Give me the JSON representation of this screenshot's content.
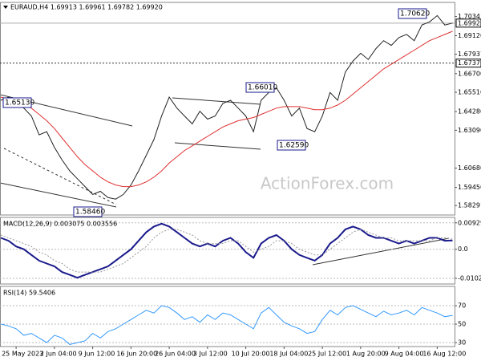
{
  "chart_data": [
    {
      "type": "line",
      "title": "EURAUD,H4 1.69913 1.69961 1.69782 1.69920",
      "watermark": "ActionForex.com",
      "series": [
        {
          "color": "#222222",
          "values": [
            1.65,
            1.652,
            1.648,
            1.645,
            1.64,
            1.628,
            1.63,
            1.62,
            1.612,
            1.605,
            1.6,
            1.595,
            1.59,
            1.592,
            1.588,
            1.587,
            1.59,
            1.596,
            1.605,
            1.615,
            1.625,
            1.64,
            1.652,
            1.645,
            1.64,
            1.635,
            1.643,
            1.638,
            1.64,
            1.648,
            1.65,
            1.645,
            1.64,
            1.63,
            1.65,
            1.655,
            1.658,
            1.65,
            1.64,
            1.645,
            1.632,
            1.63,
            1.64,
            1.655,
            1.65,
            1.668,
            1.675,
            1.68,
            1.676,
            1.683,
            1.688,
            1.685,
            1.69,
            1.692,
            1.688,
            1.698,
            1.7,
            1.704,
            1.698,
            1.6992
          ]
        },
        {
          "color": "#e03030",
          "values": [
            1.652,
            1.651,
            1.65,
            1.648,
            1.645,
            1.641,
            1.637,
            1.632,
            1.626,
            1.62,
            1.614,
            1.609,
            1.605,
            1.601,
            1.598,
            1.596,
            1.595,
            1.595,
            1.596,
            1.598,
            1.601,
            1.605,
            1.61,
            1.614,
            1.618,
            1.621,
            1.624,
            1.627,
            1.63,
            1.633,
            1.635,
            1.637,
            1.638,
            1.639,
            1.641,
            1.643,
            1.645,
            1.646,
            1.646,
            1.646,
            1.645,
            1.644,
            1.644,
            1.645,
            1.647,
            1.65,
            1.654,
            1.658,
            1.662,
            1.666,
            1.67,
            1.673,
            1.676,
            1.679,
            1.682,
            1.685,
            1.688,
            1.69,
            1.692,
            1.694
          ]
        }
      ],
      "ylim": [
        1.5769,
        1.7124
      ],
      "yticks": [
        1.70341,
        {
          "value": 1.6912,
          "label": "1.69120"
        },
        1.67937,
        {
          "value": 1.667,
          "label": "1.66700"
        },
        {
          "value": 1.6551,
          "label": "1.65510"
        },
        {
          "value": 1.6428,
          "label": "1.64280"
        },
        {
          "value": 1.6309,
          "label": "1.63090"
        },
        {
          "value": 1.6068,
          "label": "1.60680"
        },
        {
          "value": 1.5945,
          "label": "1.59450"
        },
        1.58291
      ],
      "current_price": {
        "value": 1.6992,
        "label": "1.69920"
      },
      "level": {
        "value": 1.6737,
        "label": "1.67370"
      },
      "annotations": [
        "1.70620",
        "1.66010",
        "1.65130",
        "1.62590",
        "1.58460"
      ]
    },
    {
      "type": "line",
      "title": "MACD(12,26,9) 0.003075 0.003556",
      "series": [
        {
          "color": "#1a1a8c",
          "values": [
            0.004,
            0.003,
            0.001,
            0.0,
            -0.002,
            -0.004,
            -0.005,
            -0.006,
            -0.008,
            -0.009,
            -0.01,
            -0.009,
            -0.008,
            -0.007,
            -0.006,
            -0.004,
            -0.002,
            0.0,
            0.003,
            0.006,
            0.008,
            0.009,
            0.008,
            0.006,
            0.004,
            0.002,
            0.001,
            0.002,
            0.001,
            0.003,
            0.004,
            0.002,
            -0.001,
            -0.003,
            0.002,
            0.004,
            0.005,
            0.003,
            0.0,
            -0.002,
            -0.003,
            -0.004,
            -0.002,
            0.002,
            0.004,
            0.007,
            0.008,
            0.007,
            0.005,
            0.004,
            0.004,
            0.003,
            0.002,
            0.003,
            0.002,
            0.003,
            0.004,
            0.004,
            0.003,
            0.003075
          ]
        },
        {
          "color": "#999999",
          "dashed": true,
          "values": [
            0.005,
            0.004,
            0.003,
            0.002,
            0.001,
            -0.001,
            -0.002,
            -0.004,
            -0.005,
            -0.007,
            -0.008,
            -0.008,
            -0.008,
            -0.008,
            -0.007,
            -0.006,
            -0.005,
            -0.003,
            -0.001,
            0.001,
            0.004,
            0.006,
            0.007,
            0.007,
            0.006,
            0.005,
            0.003,
            0.002,
            0.002,
            0.002,
            0.003,
            0.003,
            0.001,
            -0.001,
            0.0,
            0.001,
            0.003,
            0.003,
            0.002,
            0.0,
            -0.001,
            -0.002,
            -0.002,
            0.0,
            0.002,
            0.004,
            0.006,
            0.007,
            0.006,
            0.005,
            0.004,
            0.004,
            0.003,
            0.003,
            0.003,
            0.003,
            0.003,
            0.004,
            0.004,
            0.003556
          ]
        }
      ],
      "ylim": [
        -0.0122,
        0.0112
      ],
      "yticks": [
        0.009291,
        {
          "value": 0,
          "label": "0.0"
        },
        -0.010211
      ]
    },
    {
      "type": "line",
      "title": "RSI(14) 59.5406",
      "series": [
        {
          "color": "#3399ff",
          "values": [
            50,
            48,
            45,
            38,
            40,
            35,
            30,
            38,
            35,
            28,
            30,
            32,
            40,
            35,
            42,
            45,
            50,
            55,
            60,
            65,
            62,
            70,
            68,
            62,
            55,
            58,
            52,
            60,
            55,
            62,
            60,
            55,
            50,
            45,
            62,
            68,
            60,
            52,
            48,
            45,
            40,
            42,
            55,
            65,
            60,
            68,
            70,
            66,
            62,
            58,
            64,
            60,
            62,
            65,
            60,
            68,
            65,
            62,
            58,
            59.5406
          ]
        }
      ],
      "ylim": [
        25.7,
        90.9
      ],
      "yticks": [
        70,
        50,
        30
      ],
      "categories": [
        null,
        null,
        "25 May 2023",
        null,
        null,
        null,
        null,
        "2 Jun 04:00",
        null,
        null,
        null,
        null,
        "9 Jun 12:00",
        null,
        null,
        null,
        null,
        "16 Jun 20:00",
        null,
        null,
        null,
        null,
        "26 Jun 04:00",
        null,
        null,
        null,
        null,
        "3 Jul 12:00",
        null,
        null,
        null,
        null,
        "10 Jul 20:00",
        null,
        null,
        null,
        null,
        "18 Jul 04:00",
        null,
        null,
        null,
        null,
        "25 Jul 12:00",
        null,
        null,
        null,
        null,
        "1 Aug 20:00",
        null,
        null,
        null,
        null,
        "9 Aug 04:00",
        null,
        null,
        null,
        null,
        "16 Aug 12:00",
        null,
        null
      ]
    }
  ]
}
